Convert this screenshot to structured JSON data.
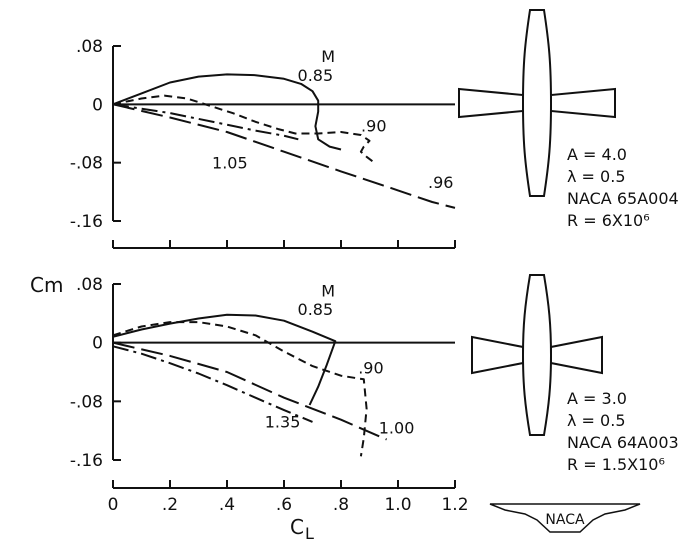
{
  "y_axis_label": "C<sub>m</sub>",
  "y_axis_label_text": "Cm",
  "x_axis_label_text": "CL",
  "chart_data": [
    {
      "type": "line",
      "xlabel": "CL",
      "ylabel": "Cm",
      "xlim": [
        0,
        1.2
      ],
      "ylim": [
        -0.16,
        0.08
      ],
      "y_ticks": [
        ".08",
        "0",
        "-.08",
        "-.16"
      ],
      "legend_title": "M",
      "notes": [
        "A = 4.0",
        "λ = 0.5",
        "NACA 65A004",
        "R = 6X10⁶"
      ],
      "series": [
        {
          "name": "0.85",
          "style": "solid",
          "points": [
            [
              0,
              0
            ],
            [
              0.1,
              0.015
            ],
            [
              0.2,
              0.03
            ],
            [
              0.3,
              0.038
            ],
            [
              0.4,
              0.041
            ],
            [
              0.5,
              0.04
            ],
            [
              0.6,
              0.035
            ],
            [
              0.66,
              0.028
            ],
            [
              0.7,
              0.018
            ],
            [
              0.72,
              0.005
            ],
            [
              0.72,
              -0.01
            ],
            [
              0.71,
              -0.03
            ],
            [
              0.72,
              -0.048
            ],
            [
              0.76,
              -0.058
            ],
            [
              0.8,
              -0.062
            ]
          ]
        },
        {
          "name": ".90",
          "style": "dashed",
          "points": [
            [
              0,
              0
            ],
            [
              0.1,
              0.008
            ],
            [
              0.18,
              0.012
            ],
            [
              0.26,
              0.008
            ],
            [
              0.34,
              -0.002
            ],
            [
              0.42,
              -0.012
            ],
            [
              0.5,
              -0.024
            ],
            [
              0.58,
              -0.034
            ],
            [
              0.64,
              -0.04
            ],
            [
              0.72,
              -0.04
            ],
            [
              0.8,
              -0.038
            ],
            [
              0.87,
              -0.042
            ],
            [
              0.9,
              -0.05
            ],
            [
              0.88,
              -0.058
            ],
            [
              0.87,
              -0.065
            ],
            [
              0.89,
              -0.072
            ],
            [
              0.91,
              -0.078
            ]
          ]
        },
        {
          "name": ".96",
          "style": "long-dash",
          "points": [
            [
              0,
              0
            ],
            [
              0.2,
              -0.018
            ],
            [
              0.4,
              -0.038
            ],
            [
              0.6,
              -0.065
            ],
            [
              0.8,
              -0.092
            ],
            [
              1.0,
              -0.118
            ],
            [
              1.12,
              -0.134
            ],
            [
              1.2,
              -0.142
            ]
          ]
        },
        {
          "name": "1.05",
          "style": "dash-dot",
          "points": [
            [
              0,
              0
            ],
            [
              0.1,
              -0.006
            ],
            [
              0.2,
              -0.012
            ],
            [
              0.3,
              -0.02
            ],
            [
              0.4,
              -0.028
            ],
            [
              0.5,
              -0.036
            ],
            [
              0.6,
              -0.043
            ],
            [
              0.65,
              -0.048
            ]
          ]
        }
      ],
      "labels": [
        {
          "text": "0.85",
          "x": 0.71,
          "y": 0.032
        },
        {
          "text": ".90",
          "x": 0.915,
          "y": -0.037
        },
        {
          "text": ".96",
          "x": 1.15,
          "y": -0.115
        },
        {
          "text": "1.05",
          "x": 0.41,
          "y": -0.088
        }
      ],
      "legend_title_pos": {
        "x": 0.755,
        "y": 0.058
      }
    },
    {
      "type": "line",
      "xlabel": "CL",
      "ylabel": "Cm",
      "xlim": [
        0,
        1.2
      ],
      "ylim": [
        -0.16,
        0.08
      ],
      "x_ticks": [
        "0",
        ".2",
        ".4",
        ".6",
        ".8",
        "1.0",
        "1.2"
      ],
      "y_ticks": [
        ".08",
        "0",
        "-.08",
        "-.16"
      ],
      "legend_title": "M",
      "notes": [
        "A = 3.0",
        "λ = 0.5",
        "NACA 64A003",
        "R = 1.5X10⁶"
      ],
      "series": [
        {
          "name": "0.85",
          "style": "solid",
          "points": [
            [
              0,
              0.008
            ],
            [
              0.1,
              0.018
            ],
            [
              0.2,
              0.026
            ],
            [
              0.3,
              0.033
            ],
            [
              0.4,
              0.038
            ],
            [
              0.5,
              0.037
            ],
            [
              0.6,
              0.03
            ],
            [
              0.7,
              0.015
            ],
            [
              0.78,
              0.002
            ],
            [
              0.75,
              -0.03
            ],
            [
              0.72,
              -0.06
            ],
            [
              0.69,
              -0.085
            ]
          ]
        },
        {
          "name": ".90",
          "style": "dashed",
          "points": [
            [
              0,
              0.01
            ],
            [
              0.1,
              0.022
            ],
            [
              0.2,
              0.028
            ],
            [
              0.3,
              0.028
            ],
            [
              0.4,
              0.022
            ],
            [
              0.5,
              0.01
            ],
            [
              0.6,
              -0.012
            ],
            [
              0.7,
              -0.032
            ],
            [
              0.8,
              -0.045
            ],
            [
              0.88,
              -0.05
            ],
            [
              0.89,
              -0.09
            ],
            [
              0.88,
              -0.13
            ],
            [
              0.87,
              -0.155
            ]
          ]
        },
        {
          "name": "1.00",
          "style": "long-dash",
          "points": [
            [
              0,
              0
            ],
            [
              0.2,
              -0.018
            ],
            [
              0.4,
              -0.04
            ],
            [
              0.6,
              -0.075
            ],
            [
              0.8,
              -0.105
            ],
            [
              0.96,
              -0.132
            ]
          ]
        },
        {
          "name": "1.35",
          "style": "dash-dot",
          "points": [
            [
              0,
              -0.005
            ],
            [
              0.1,
              -0.015
            ],
            [
              0.2,
              -0.028
            ],
            [
              0.3,
              -0.042
            ],
            [
              0.4,
              -0.058
            ],
            [
              0.5,
              -0.075
            ],
            [
              0.6,
              -0.092
            ],
            [
              0.7,
              -0.108
            ]
          ]
        }
      ],
      "labels": [
        {
          "text": "0.85",
          "x": 0.71,
          "y": 0.038
        },
        {
          "text": ".90",
          "x": 0.905,
          "y": -0.042
        },
        {
          "text": "1.00",
          "x": 0.995,
          "y": -0.124
        },
        {
          "text": "1.35",
          "x": 0.595,
          "y": -0.116
        }
      ],
      "legend_title_pos": {
        "x": 0.755,
        "y": 0.063
      }
    }
  ],
  "logo_text": "NACA"
}
